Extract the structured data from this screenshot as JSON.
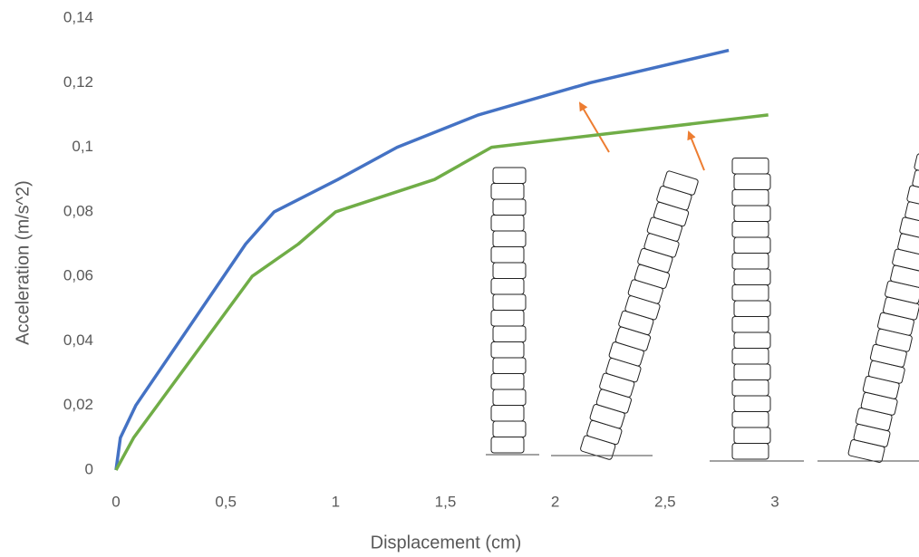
{
  "chart_data": {
    "type": "line",
    "x_label": "Displacement (cm)",
    "y_label": "Acceleration (m/s^2)",
    "series": [
      {
        "color": "#4472c4",
        "x": [
          0,
          0.02,
          0.09,
          0.59,
          0.72,
          1.01,
          1.28,
          1.65,
          2.16,
          2.79
        ],
        "values": [
          0,
          0.01,
          0.02,
          0.07,
          0.08,
          0.09,
          0.1,
          0.11,
          0.12,
          0.13
        ]
      },
      {
        "color": "#70ad47",
        "x": [
          0,
          0.08,
          0.62,
          0.83,
          1.0,
          1.45,
          1.71,
          2.97
        ],
        "values": [
          0,
          0.01,
          0.06,
          0.07,
          0.08,
          0.09,
          0.1,
          0.11
        ]
      }
    ],
    "xlim": [
      0,
      3
    ],
    "xticks": [
      0,
      {
        "value": 0.5,
        "label": "0,5"
      },
      1,
      {
        "value": 1.5,
        "label": "1,5"
      },
      2,
      {
        "value": 2.5,
        "label": "2,5"
      },
      3
    ],
    "ylim": [
      0,
      0.14
    ],
    "yticks": [
      0,
      {
        "value": 0.02,
        "label": "0,02"
      },
      {
        "value": 0.04,
        "label": "0,04"
      },
      {
        "value": 0.06,
        "label": "0,06"
      },
      {
        "value": 0.08,
        "label": "0,08"
      },
      {
        "value": 0.1,
        "label": "0,1"
      },
      {
        "value": 0.12,
        "label": "0,12"
      },
      {
        "value": 0.14,
        "label": "0,14"
      }
    ],
    "grid": false
  }
}
